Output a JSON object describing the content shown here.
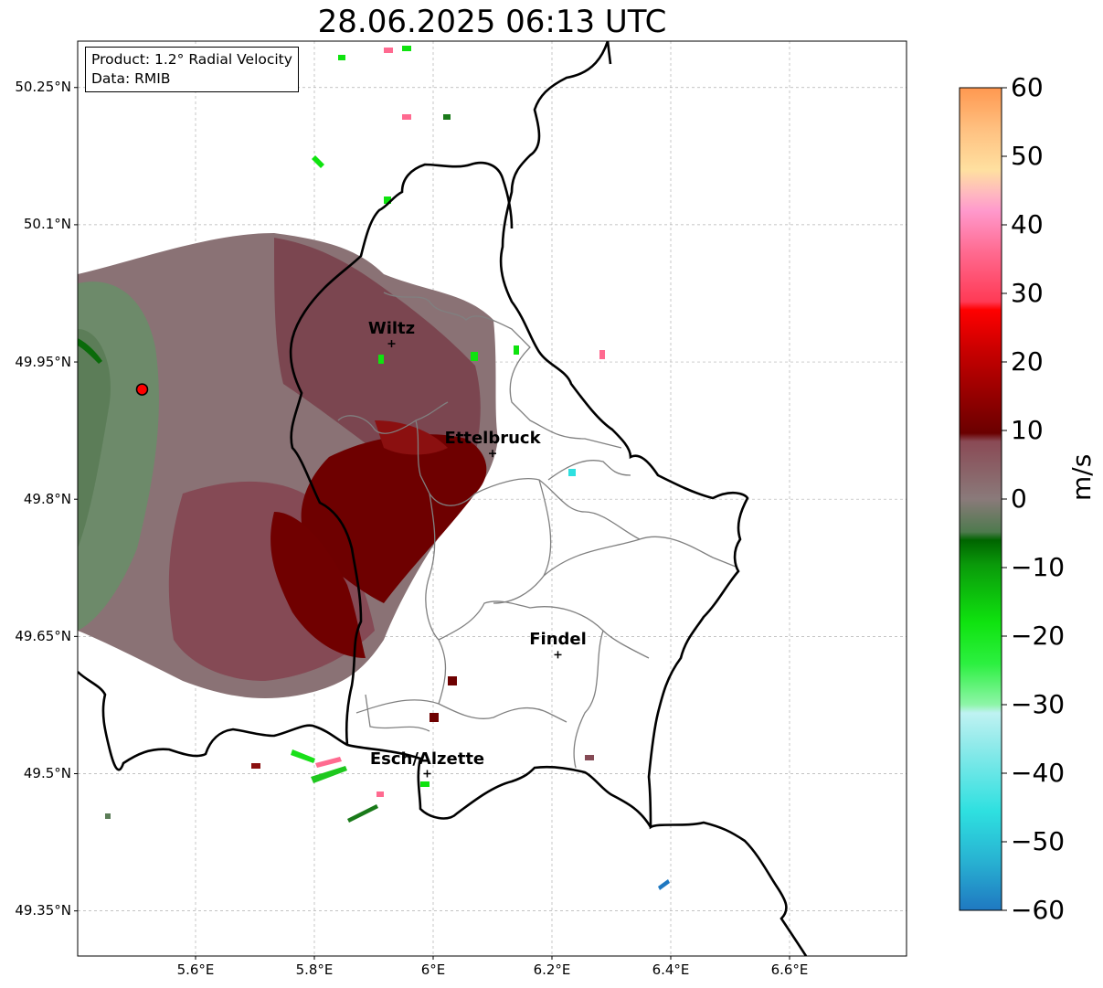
{
  "title": "28.06.2025 06:13 UTC",
  "info": {
    "product_line": "Product: 1.2° Radial Velocity",
    "data_line": "Data: RMIB"
  },
  "axes": {
    "lat_labels": [
      "50.25°N",
      "50.1°N",
      "49.95°N",
      "49.8°N",
      "49.65°N",
      "49.5°N",
      "49.35°N"
    ],
    "lon_labels": [
      "5.6°E",
      "5.8°E",
      "6°E",
      "6.2°E",
      "6.4°E",
      "6.6°E"
    ]
  },
  "places": [
    {
      "name": "Wiltz",
      "lon": 5.93,
      "lat": 49.97
    },
    {
      "name": "Ettelbruck",
      "lon": 6.1,
      "lat": 49.85
    },
    {
      "name": "Findel",
      "lon": 6.21,
      "lat": 49.63
    },
    {
      "name": "Esch/Alzette",
      "lon": 5.99,
      "lat": 49.5
    }
  ],
  "radar_site": {
    "lon": 5.51,
    "lat": 49.92
  },
  "colorbar": {
    "unit": "m/s",
    "ticks": [
      "60",
      "50",
      "40",
      "30",
      "20",
      "10",
      "0",
      "−10",
      "−20",
      "−30",
      "−40",
      "−50",
      "−60"
    ],
    "min": -60,
    "max": 60,
    "colors": {
      "neg_blue": "#1f78c1",
      "neg_cyan": "#2ee0e0",
      "neg_lightcyan": "#bff2f2",
      "neg_lightgreen": "#8ef5a8",
      "neg_green": "#0fe30f",
      "neg_darkgreen": "#006400",
      "zero_gray": "#8a7a7a",
      "pos_darkred": "#700000",
      "pos_red": "#ff0000",
      "pos_pink": "#ff88cc",
      "pos_peach": "#ffe0a0",
      "pos_orange": "#ff9850"
    }
  }
}
